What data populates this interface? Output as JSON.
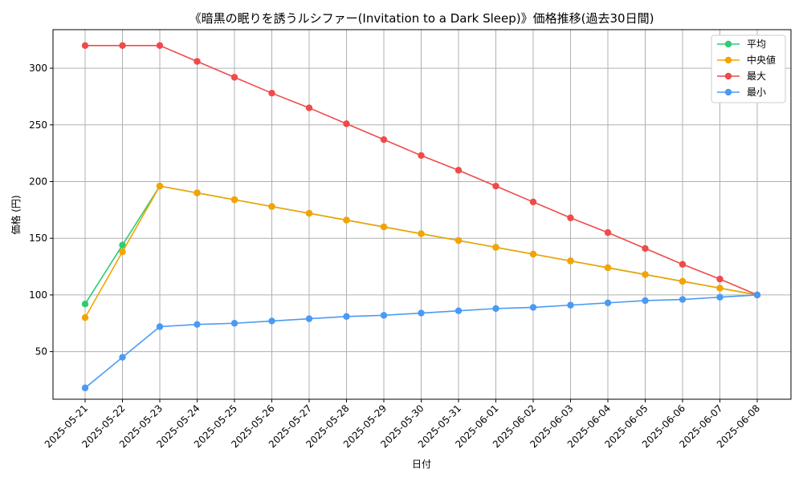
{
  "chart_data": {
    "type": "line",
    "title": "《暗黒の眠りを誘うルシファー(Invitation to a Dark Sleep)》価格推移(過去30日間)",
    "xlabel": "日付",
    "ylabel": "価格 (円)",
    "ylim": [
      8,
      334
    ],
    "yticks": [
      50,
      100,
      150,
      200,
      250,
      300
    ],
    "grid": true,
    "legend_position": "top-right",
    "categories": [
      "2025-05-21",
      "2025-05-22",
      "2025-05-23",
      "2025-05-24",
      "2025-05-25",
      "2025-05-26",
      "2025-05-27",
      "2025-05-28",
      "2025-05-29",
      "2025-05-30",
      "2025-05-31",
      "2025-06-01",
      "2025-06-02",
      "2025-06-03",
      "2025-06-04",
      "2025-06-05",
      "2025-06-06",
      "2025-06-07",
      "2025-06-08"
    ],
    "series": [
      {
        "name": "平均",
        "color": "#2ecc71",
        "values": [
          92,
          144,
          196,
          190,
          184,
          178,
          172,
          166,
          160,
          154,
          148,
          142,
          136,
          130,
          124,
          118,
          112,
          106,
          100
        ]
      },
      {
        "name": "中央値",
        "color": "#f5a300",
        "values": [
          80,
          138,
          196,
          190,
          184,
          178,
          172,
          166,
          160,
          154,
          148,
          142,
          136,
          130,
          124,
          118,
          112,
          106,
          100
        ]
      },
      {
        "name": "最大",
        "color": "#f04a4a",
        "values": [
          320,
          320,
          320,
          306,
          292,
          278,
          265,
          251,
          237,
          223,
          210,
          196,
          182,
          168,
          155,
          141,
          127,
          114,
          100
        ]
      },
      {
        "name": "最小",
        "color": "#4a9af5",
        "values": [
          18,
          45,
          72,
          74,
          75,
          77,
          79,
          81,
          82,
          84,
          86,
          88,
          89,
          91,
          93,
          95,
          96,
          98,
          100
        ]
      }
    ]
  }
}
